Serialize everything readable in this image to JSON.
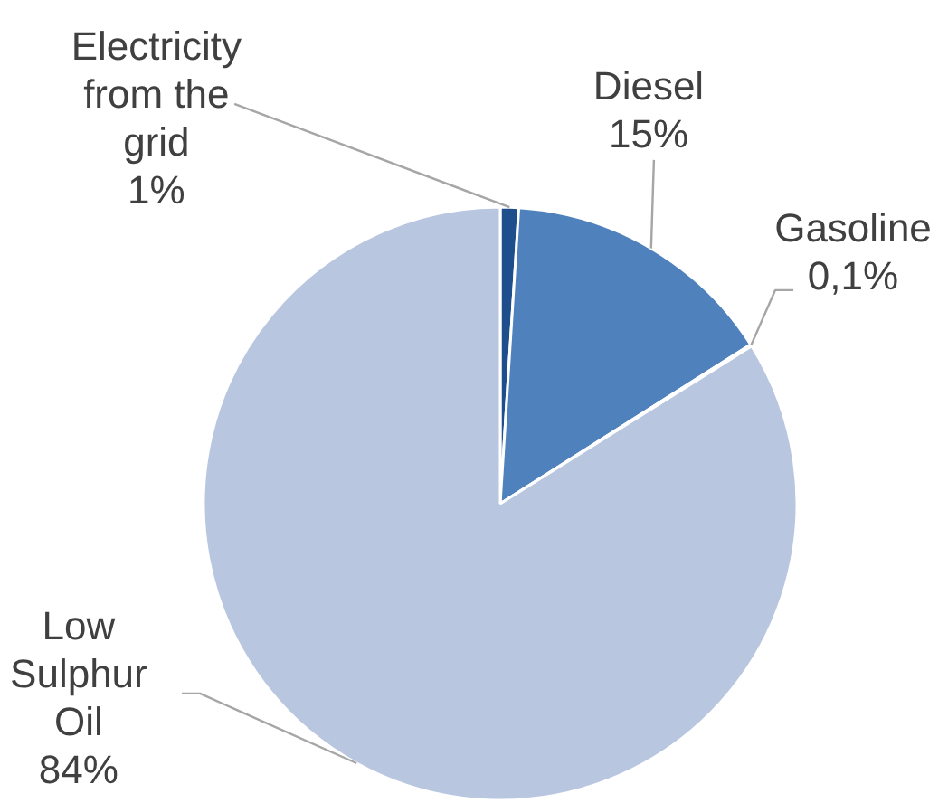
{
  "chart_data": {
    "type": "pie",
    "categories": [
      "Electricity from the grid",
      "Diesel",
      "Gasoline",
      "Low Sulphur Oil"
    ],
    "values": [
      1,
      15,
      0.1,
      84
    ],
    "colors": [
      "#1f4e8c",
      "#4f81bd",
      "#95b3d7",
      "#b9c6e0"
    ],
    "value_labels": [
      "1%",
      "15%",
      "0,1%",
      "84%"
    ]
  }
}
